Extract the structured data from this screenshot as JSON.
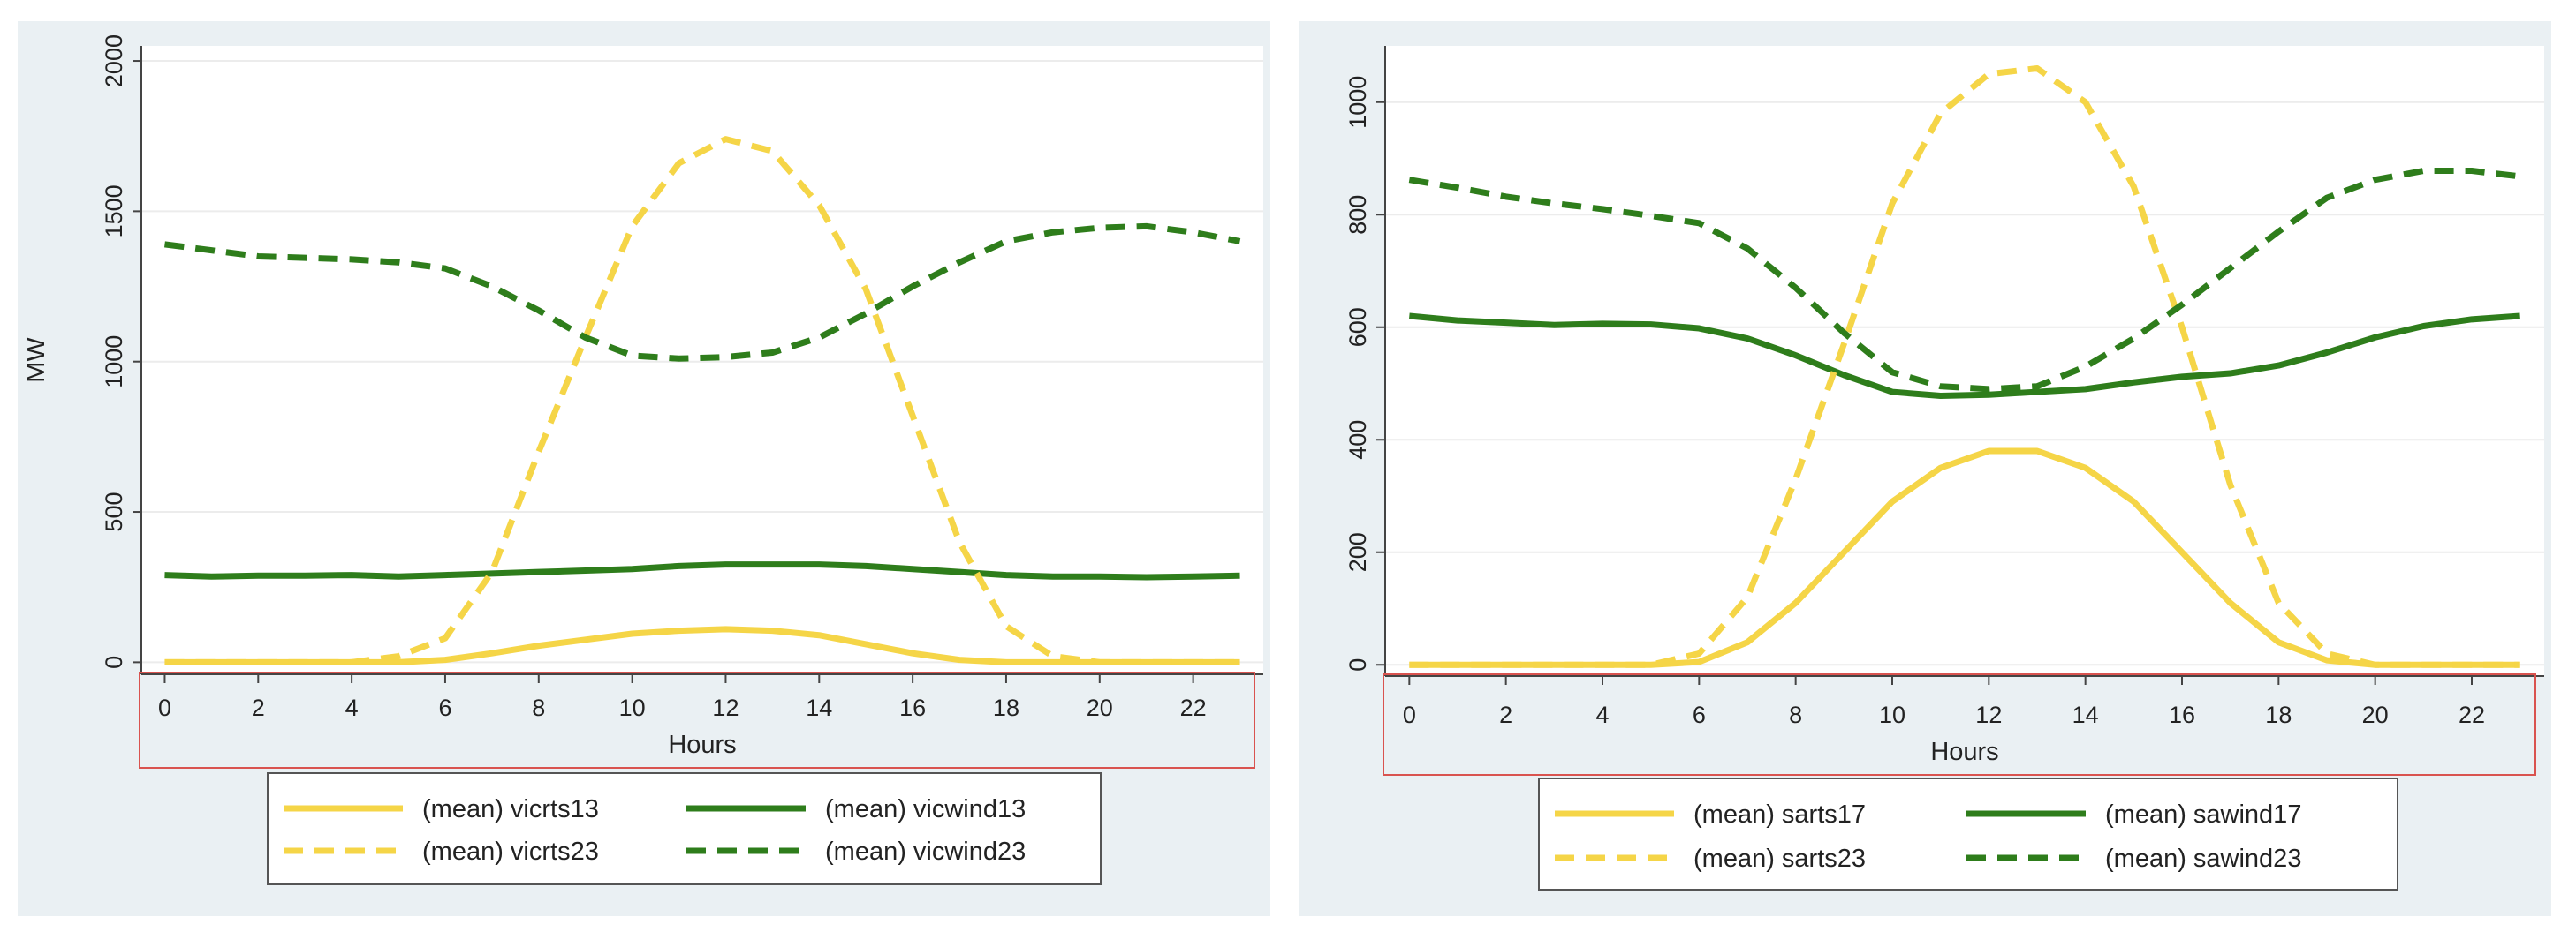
{
  "chart_data": [
    {
      "type": "line",
      "title": "",
      "xlabel": "Hours",
      "ylabel": "MW",
      "x": [
        0,
        1,
        2,
        3,
        4,
        5,
        6,
        7,
        8,
        9,
        10,
        11,
        12,
        13,
        14,
        15,
        16,
        17,
        18,
        19,
        20,
        21,
        22,
        23
      ],
      "xticks": [
        0,
        2,
        4,
        6,
        8,
        10,
        12,
        14,
        16,
        18,
        20,
        22
      ],
      "xlim": [
        -0.5,
        23.5
      ],
      "yticks": [
        0,
        500,
        1000,
        1500,
        2000
      ],
      "ylim": [
        -40,
        2050
      ],
      "grid": true,
      "legend_position": "bottom",
      "series": [
        {
          "name": "(mean) vicrts13",
          "color": "#f5d547",
          "style": "solid",
          "values": [
            0,
            0,
            0,
            0,
            0,
            0,
            8,
            30,
            55,
            75,
            95,
            105,
            110,
            105,
            90,
            60,
            30,
            8,
            0,
            0,
            0,
            0,
            0,
            0
          ]
        },
        {
          "name": "(mean) vicwind13",
          "color": "#2e7d1b",
          "style": "solid",
          "values": [
            290,
            285,
            288,
            288,
            290,
            285,
            290,
            295,
            300,
            305,
            310,
            320,
            325,
            325,
            325,
            320,
            310,
            300,
            290,
            285,
            285,
            283,
            285,
            288
          ]
        },
        {
          "name": "(mean) vicrts23",
          "color": "#f5d547",
          "style": "dashed",
          "values": [
            0,
            0,
            0,
            0,
            0,
            20,
            80,
            300,
            700,
            1080,
            1450,
            1660,
            1740,
            1700,
            1520,
            1240,
            820,
            400,
            120,
            20,
            0,
            0,
            0,
            0
          ]
        },
        {
          "name": "(mean) vicwind23",
          "color": "#2e7d1b",
          "style": "dashed",
          "values": [
            1390,
            1370,
            1350,
            1345,
            1340,
            1330,
            1310,
            1250,
            1170,
            1080,
            1020,
            1010,
            1015,
            1030,
            1080,
            1160,
            1250,
            1330,
            1400,
            1430,
            1445,
            1450,
            1430,
            1400
          ]
        }
      ]
    },
    {
      "type": "line",
      "title": "",
      "xlabel": "Hours",
      "ylabel": "",
      "x": [
        0,
        1,
        2,
        3,
        4,
        5,
        6,
        7,
        8,
        9,
        10,
        11,
        12,
        13,
        14,
        15,
        16,
        17,
        18,
        19,
        20,
        21,
        22,
        23
      ],
      "xticks": [
        0,
        2,
        4,
        6,
        8,
        10,
        12,
        14,
        16,
        18,
        20,
        22
      ],
      "xlim": [
        -0.5,
        23.5
      ],
      "yticks": [
        0,
        200,
        400,
        600,
        800,
        1000
      ],
      "ylim": [
        -20,
        1100
      ],
      "grid": true,
      "legend_position": "bottom",
      "series": [
        {
          "name": "(mean) sarts17",
          "color": "#f5d547",
          "style": "solid",
          "values": [
            0,
            0,
            0,
            0,
            0,
            0,
            5,
            40,
            110,
            200,
            290,
            350,
            380,
            380,
            350,
            290,
            200,
            110,
            40,
            8,
            0,
            0,
            0,
            0
          ]
        },
        {
          "name": "(mean) sawind17",
          "color": "#2e7d1b",
          "style": "solid",
          "values": [
            620,
            612,
            608,
            604,
            606,
            605,
            598,
            580,
            550,
            515,
            485,
            478,
            480,
            485,
            490,
            502,
            512,
            518,
            532,
            555,
            582,
            602,
            614,
            620
          ]
        },
        {
          "name": "(mean) sarts23",
          "color": "#f5d547",
          "style": "dashed",
          "values": [
            0,
            0,
            0,
            0,
            0,
            0,
            20,
            120,
            330,
            570,
            820,
            980,
            1050,
            1060,
            1000,
            850,
            600,
            320,
            110,
            20,
            0,
            0,
            0,
            0
          ]
        },
        {
          "name": "(mean) sawind23",
          "color": "#2e7d1b",
          "style": "dashed",
          "values": [
            862,
            848,
            832,
            820,
            810,
            798,
            785,
            740,
            670,
            590,
            520,
            495,
            490,
            495,
            530,
            580,
            640,
            705,
            770,
            830,
            862,
            878,
            878,
            868
          ]
        }
      ]
    }
  ]
}
